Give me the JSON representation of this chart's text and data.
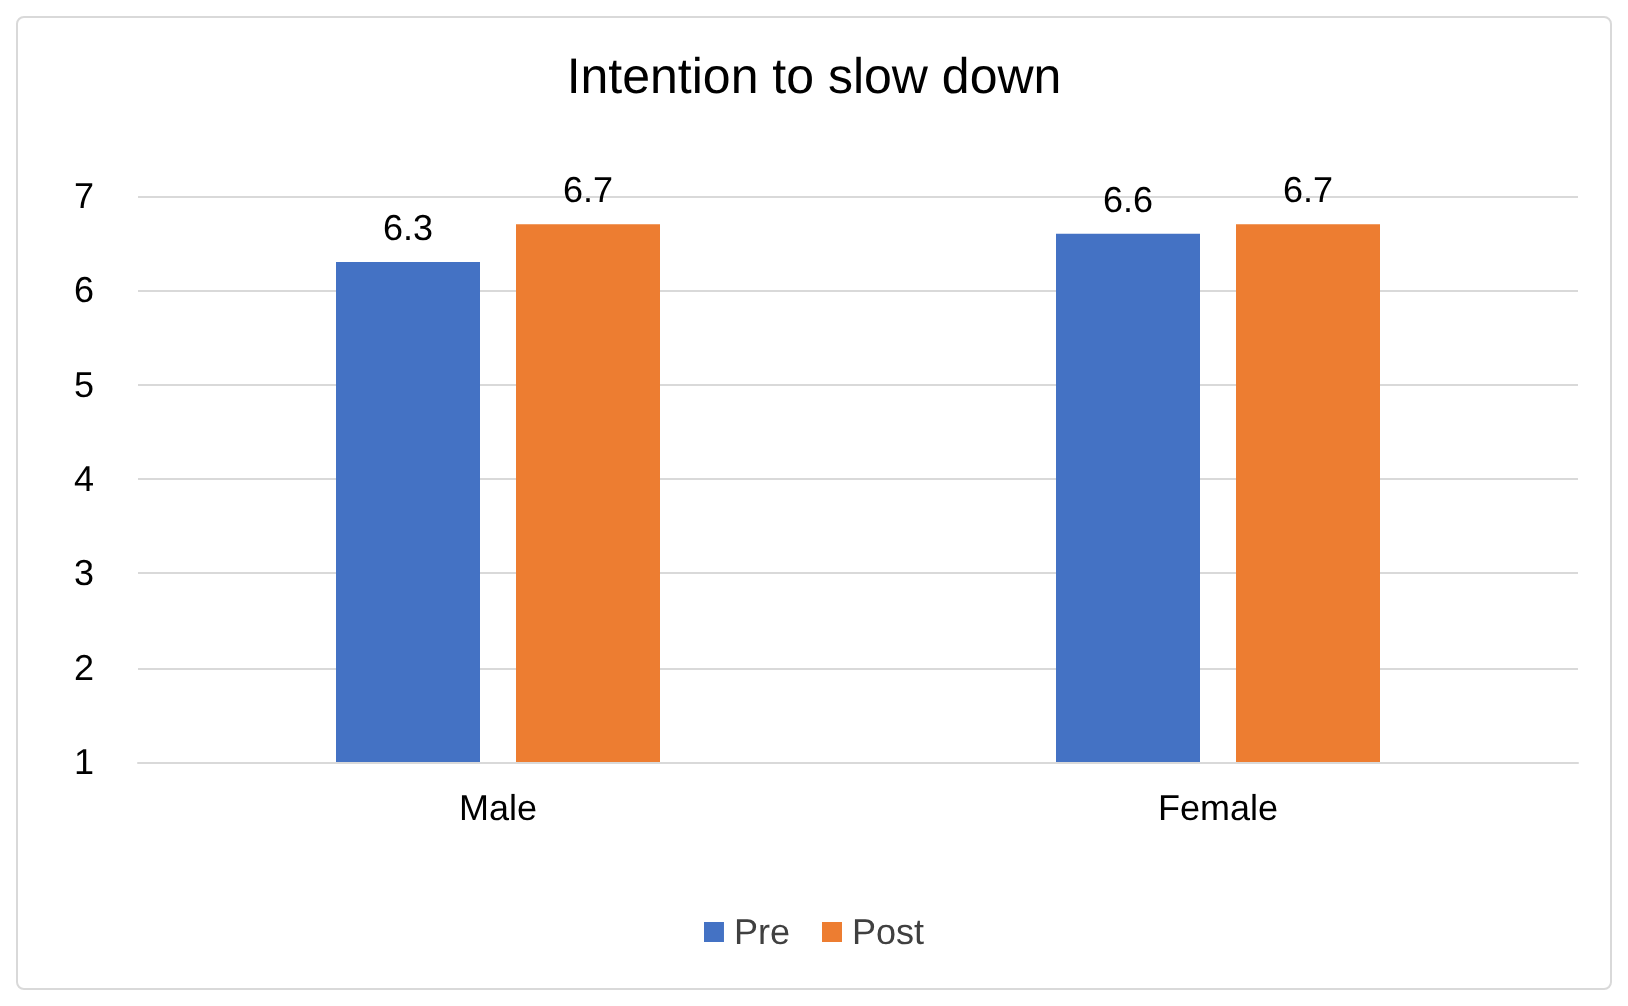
{
  "chart_data": {
    "type": "bar",
    "title": "Intention to slow down",
    "categories": [
      "Male",
      "Female"
    ],
    "series": [
      {
        "name": "Pre",
        "color": "#4472c4",
        "values": [
          6.3,
          6.6
        ]
      },
      {
        "name": "Post",
        "color": "#ed7d31",
        "values": [
          6.7,
          6.7
        ]
      }
    ],
    "ylim": [
      1,
      7
    ],
    "yticks": [
      1,
      2,
      3,
      4,
      5,
      6,
      7
    ],
    "grid": "y",
    "legend": "bottom",
    "data_labels": true
  }
}
